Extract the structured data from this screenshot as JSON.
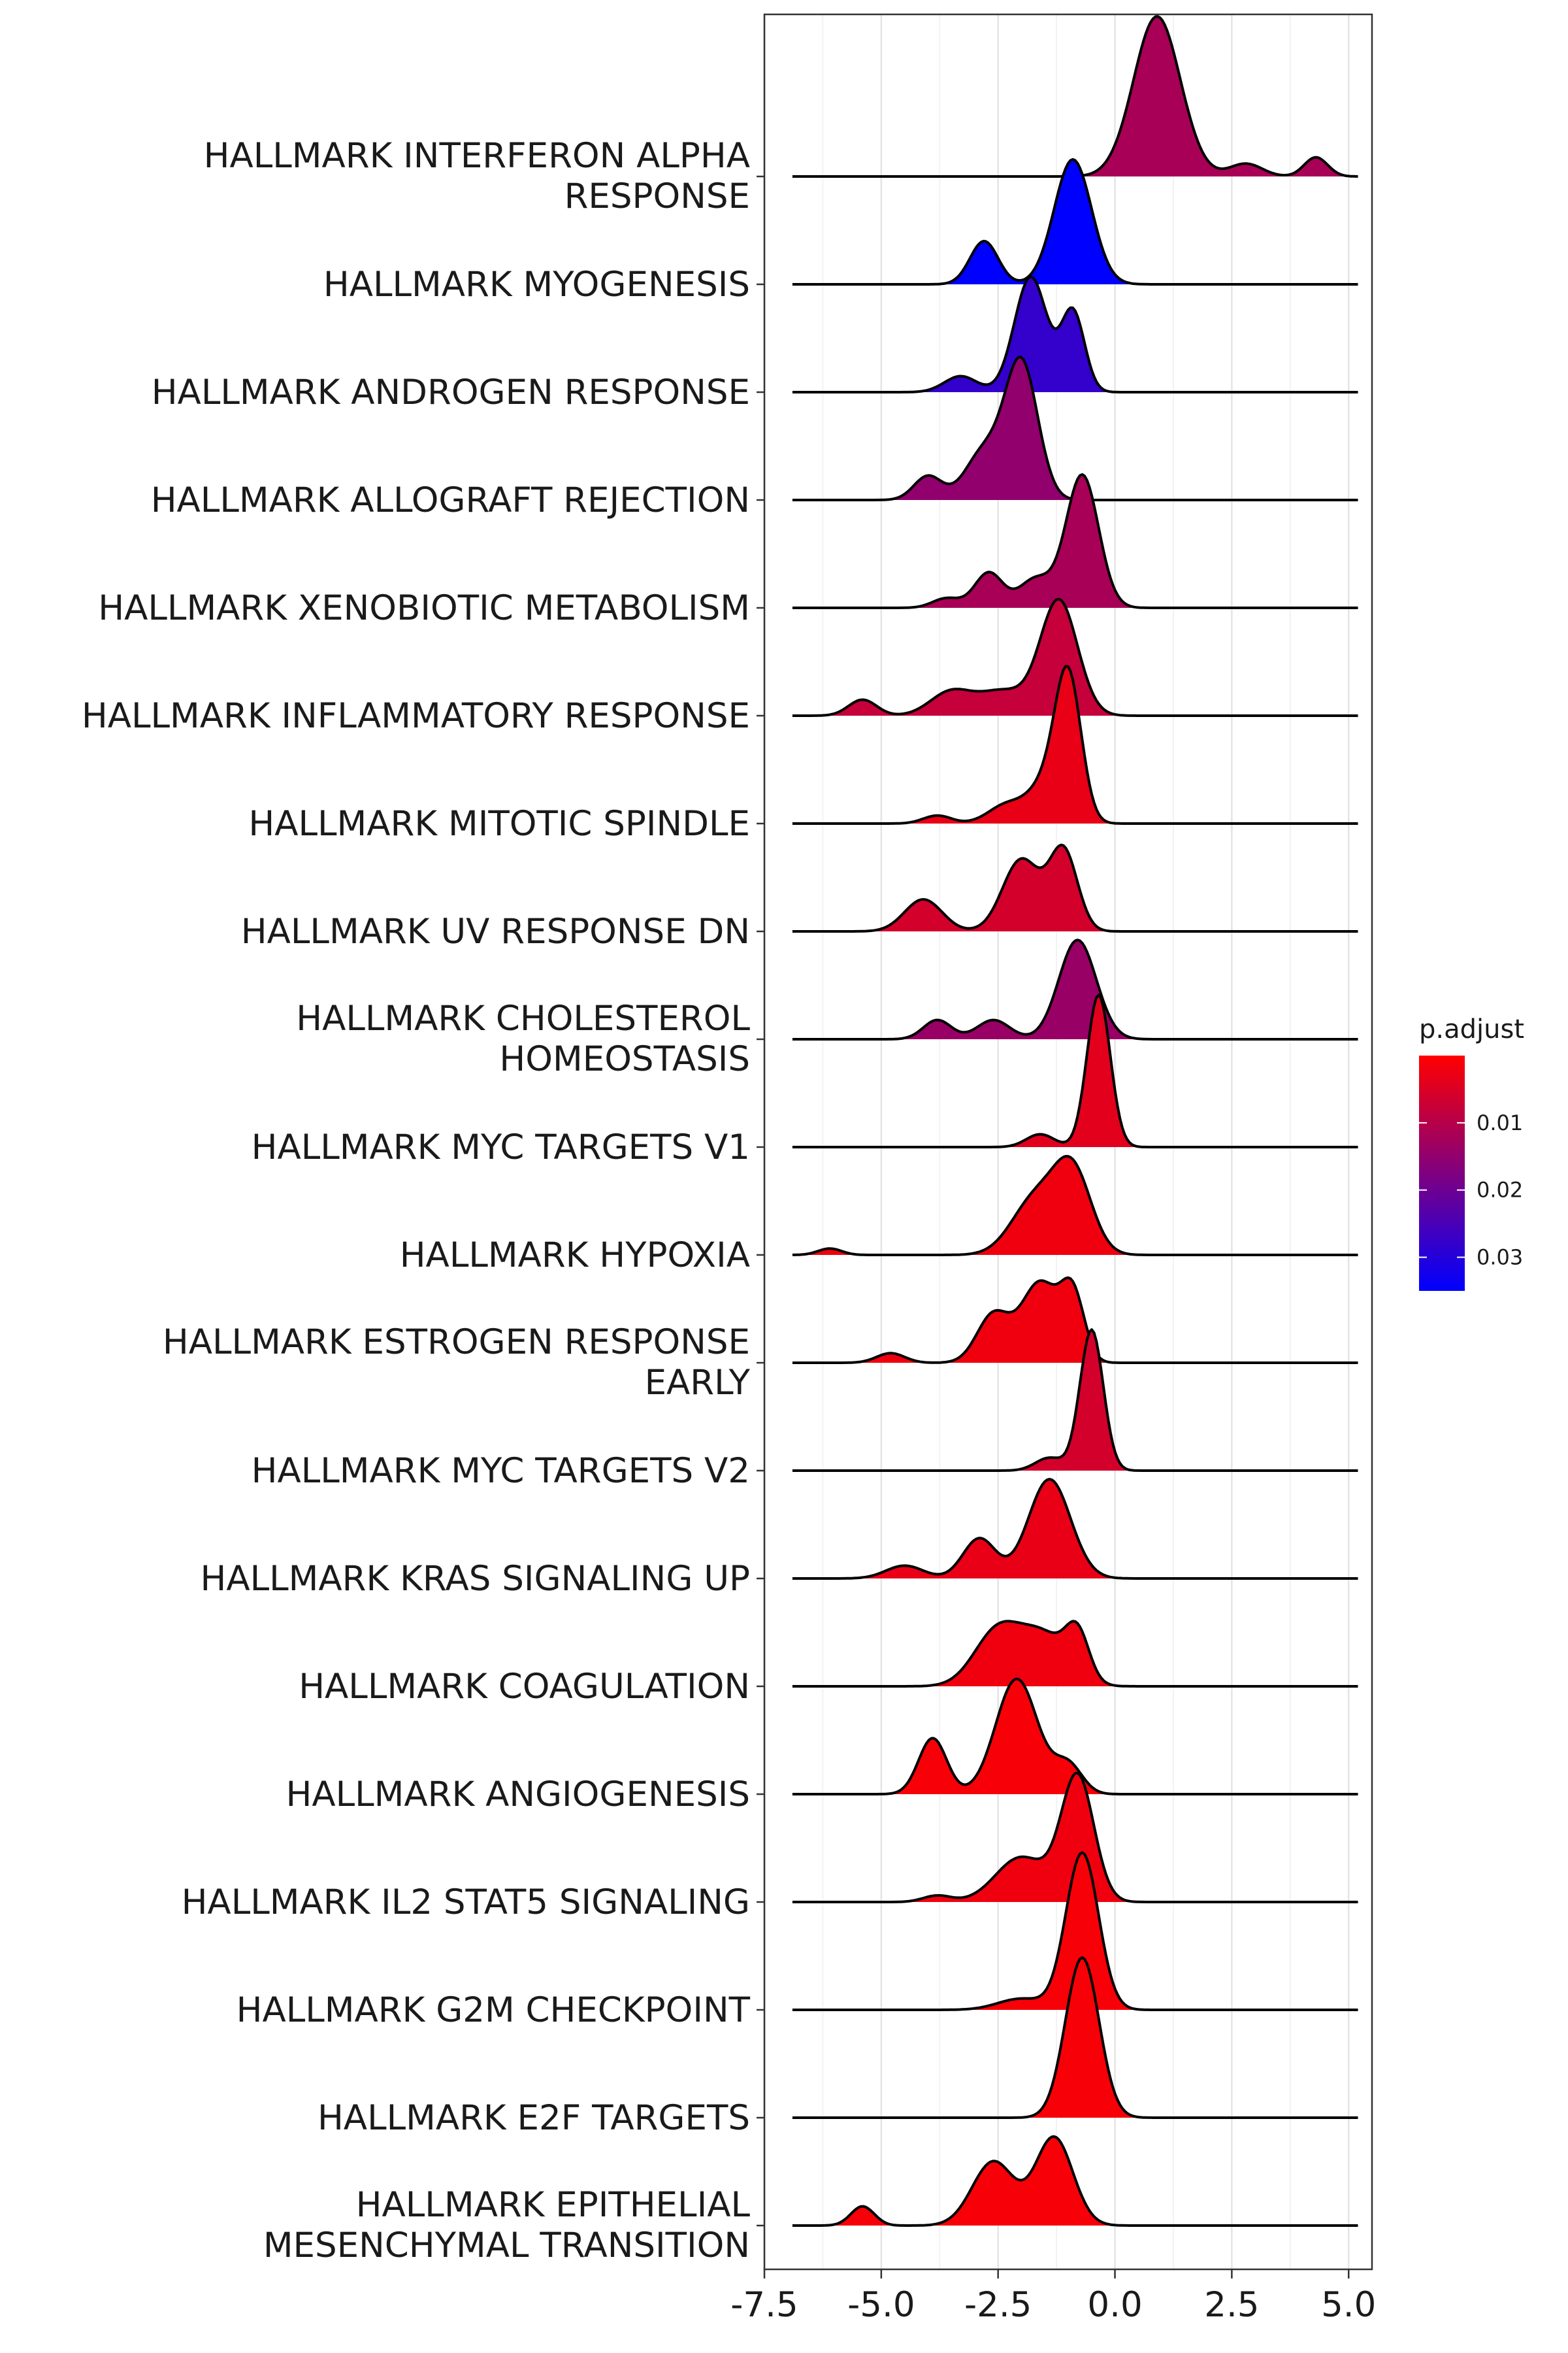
{
  "chart_data": {
    "type": "ridgeline",
    "xlim": [
      -7.5,
      5.5
    ],
    "x_ticks": [
      "-7.5",
      "-5.0",
      "-2.5",
      "0.0",
      "2.5",
      "5.0"
    ],
    "x_tick_values": [
      -7.5,
      -5.0,
      -2.5,
      0.0,
      2.5,
      5.0
    ],
    "grid": true,
    "legend": {
      "title": "p.adjust",
      "placement": "right",
      "min": 0.0,
      "max": 0.035,
      "ticks": [
        0.01,
        0.02,
        0.03
      ],
      "tick_labels": [
        "0.01",
        "0.02",
        "0.03"
      ],
      "color_low": "#FF0000",
      "color_high": "#0000FF"
    },
    "series": [
      {
        "label": [
          "HALLMARK INTERFERON ALPHA",
          "RESPONSE"
        ],
        "p_adjust": 0.012,
        "range": [
          -6.9,
          5.2
        ],
        "density": [
          [
            0.9,
            0.5,
            1.0
          ],
          [
            2.8,
            0.35,
            0.08
          ],
          [
            4.3,
            0.25,
            0.12
          ]
        ]
      },
      {
        "label": [
          "HALLMARK MYOGENESIS"
        ],
        "p_adjust": 0.035,
        "range": [
          -6.9,
          5.2
        ],
        "density": [
          [
            -2.8,
            0.3,
            0.27
          ],
          [
            -0.9,
            0.4,
            0.78
          ]
        ]
      },
      {
        "label": [
          "HALLMARK ANDROGEN RESPONSE"
        ],
        "p_adjust": 0.028,
        "range": [
          -6.9,
          5.2
        ],
        "density": [
          [
            -3.3,
            0.35,
            0.1
          ],
          [
            -1.8,
            0.35,
            0.72
          ],
          [
            -0.9,
            0.25,
            0.5
          ]
        ]
      },
      {
        "label": [
          "HALLMARK ALLOGRAFT REJECTION"
        ],
        "p_adjust": 0.015,
        "range": [
          -6.9,
          5.2
        ],
        "density": [
          [
            -4.0,
            0.3,
            0.15
          ],
          [
            -2.8,
            0.4,
            0.3
          ],
          [
            -2.0,
            0.35,
            0.85
          ]
        ]
      },
      {
        "label": [
          "HALLMARK XENOBIOTIC METABOLISM"
        ],
        "p_adjust": 0.012,
        "range": [
          -6.9,
          5.2
        ],
        "density": [
          [
            -3.6,
            0.3,
            0.06
          ],
          [
            -2.7,
            0.3,
            0.22
          ],
          [
            -1.7,
            0.35,
            0.18
          ],
          [
            -0.7,
            0.35,
            0.83
          ]
        ]
      },
      {
        "label": [
          "HALLMARK INFLAMMATORY RESPONSE"
        ],
        "p_adjust": 0.008,
        "range": [
          -6.9,
          5.2
        ],
        "density": [
          [
            -5.4,
            0.3,
            0.1
          ],
          [
            -3.5,
            0.45,
            0.15
          ],
          [
            -2.4,
            0.5,
            0.15
          ],
          [
            -1.2,
            0.4,
            0.72
          ]
        ]
      },
      {
        "label": [
          "HALLMARK MITOTIC SPINDLE"
        ],
        "p_adjust": 0.003,
        "range": [
          -6.9,
          5.2
        ],
        "density": [
          [
            -3.8,
            0.3,
            0.05
          ],
          [
            -2.3,
            0.4,
            0.12
          ],
          [
            -1.5,
            0.35,
            0.22
          ],
          [
            -1.0,
            0.28,
            0.9
          ]
        ]
      },
      {
        "label": [
          "HALLMARK UV RESPONSE DN"
        ],
        "p_adjust": 0.006,
        "range": [
          -6.9,
          5.2
        ],
        "density": [
          [
            -4.1,
            0.4,
            0.2
          ],
          [
            -2.0,
            0.4,
            0.45
          ],
          [
            -1.1,
            0.3,
            0.5
          ]
        ]
      },
      {
        "label": [
          "HALLMARK CHOLESTEROL",
          "HOMEOSTASIS"
        ],
        "p_adjust": 0.014,
        "range": [
          -6.9,
          5.2
        ],
        "density": [
          [
            -3.8,
            0.3,
            0.12
          ],
          [
            -2.6,
            0.35,
            0.12
          ],
          [
            -0.8,
            0.4,
            0.62
          ]
        ]
      },
      {
        "label": [
          "HALLMARK MYC TARGETS V1"
        ],
        "p_adjust": 0.004,
        "range": [
          -6.9,
          5.2
        ],
        "density": [
          [
            -1.6,
            0.3,
            0.08
          ],
          [
            -0.35,
            0.25,
            0.95
          ]
        ]
      },
      {
        "label": [
          "HALLMARK HYPOXIA"
        ],
        "p_adjust": 0.002,
        "range": [
          -6.9,
          5.2
        ],
        "density": [
          [
            -6.1,
            0.25,
            0.04
          ],
          [
            -1.7,
            0.5,
            0.35
          ],
          [
            -0.9,
            0.4,
            0.5
          ]
        ]
      },
      {
        "label": [
          "HALLMARK ESTROGEN RESPONSE",
          "EARLY"
        ],
        "p_adjust": 0.002,
        "range": [
          -6.9,
          5.2
        ],
        "density": [
          [
            -4.8,
            0.3,
            0.06
          ],
          [
            -2.6,
            0.35,
            0.3
          ],
          [
            -1.6,
            0.4,
            0.5
          ],
          [
            -0.9,
            0.25,
            0.4
          ]
        ]
      },
      {
        "label": [
          "HALLMARK MYC TARGETS V2"
        ],
        "p_adjust": 0.006,
        "range": [
          -6.9,
          5.2
        ],
        "density": [
          [
            -1.4,
            0.3,
            0.08
          ],
          [
            -0.5,
            0.25,
            0.88
          ]
        ]
      },
      {
        "label": [
          "HALLMARK KRAS SIGNALING UP"
        ],
        "p_adjust": 0.003,
        "range": [
          -6.9,
          5.2
        ],
        "density": [
          [
            -4.5,
            0.4,
            0.08
          ],
          [
            -2.9,
            0.35,
            0.25
          ],
          [
            -1.4,
            0.45,
            0.62
          ]
        ]
      },
      {
        "label": [
          "HALLMARK COAGULATION"
        ],
        "p_adjust": 0.002,
        "range": [
          -6.9,
          5.2
        ],
        "density": [
          [
            -2.5,
            0.5,
            0.35
          ],
          [
            -1.5,
            0.5,
            0.3
          ],
          [
            -0.8,
            0.25,
            0.28
          ]
        ]
      },
      {
        "label": [
          "HALLMARK ANGIOGENESIS"
        ],
        "p_adjust": 0.001,
        "range": [
          -6.9,
          5.2
        ],
        "density": [
          [
            -3.9,
            0.3,
            0.35
          ],
          [
            -2.1,
            0.45,
            0.72
          ],
          [
            -1.0,
            0.3,
            0.18
          ]
        ]
      },
      {
        "label": [
          "HALLMARK IL2 STAT5 SIGNALING"
        ],
        "p_adjust": 0.002,
        "range": [
          -6.9,
          5.2
        ],
        "density": [
          [
            -3.8,
            0.3,
            0.04
          ],
          [
            -2.0,
            0.55,
            0.28
          ],
          [
            -0.8,
            0.35,
            0.78
          ]
        ]
      },
      {
        "label": [
          "HALLMARK G2M CHECKPOINT"
        ],
        "p_adjust": 0.001,
        "range": [
          -6.9,
          5.2
        ],
        "density": [
          [
            -2.0,
            0.5,
            0.07
          ],
          [
            -0.7,
            0.35,
            0.98
          ]
        ]
      },
      {
        "label": [
          "HALLMARK E2F TARGETS"
        ],
        "p_adjust": 0.001,
        "range": [
          -6.9,
          5.2
        ],
        "density": [
          [
            -0.7,
            0.36,
            1.0
          ]
        ]
      },
      {
        "label": [
          "HALLMARK EPITHELIAL",
          "MESENCHYMAL TRANSITION"
        ],
        "p_adjust": 0.001,
        "range": [
          -6.9,
          5.2
        ],
        "density": [
          [
            -5.4,
            0.25,
            0.12
          ],
          [
            -2.6,
            0.45,
            0.4
          ],
          [
            -1.3,
            0.4,
            0.55
          ]
        ]
      }
    ]
  }
}
